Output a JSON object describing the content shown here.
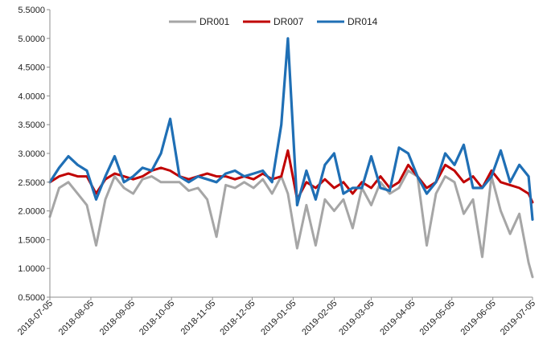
{
  "chart_data": {
    "type": "line",
    "title": "",
    "xlabel": "",
    "ylabel": "",
    "ylim": [
      0.5,
      5.5
    ],
    "yticks": [
      0.5,
      1.0,
      1.5,
      2.0,
      2.5,
      3.0,
      3.5,
      4.0,
      4.5,
      5.0,
      5.5
    ],
    "ytick_labels": [
      "0.5000",
      "1.0000",
      "1.5000",
      "2.0000",
      "2.5000",
      "3.0000",
      "3.5000",
      "4.0000",
      "4.5000",
      "5.0000",
      "5.5000"
    ],
    "x_ticks": [
      "2018-07-05",
      "2018-08-05",
      "2018-09-05",
      "2018-10-05",
      "2018-11-05",
      "2018-12-05",
      "2019-01-05",
      "2019-02-05",
      "2019-03-05",
      "2019-04-05",
      "2019-05-05",
      "2019-06-05",
      "2019-07-05"
    ],
    "grid": false,
    "legend_position": "top-center",
    "series": [
      {
        "name": "DR001",
        "color": "#a6a6a6",
        "x": [
          "2018-07-05",
          "2018-07-12",
          "2018-07-19",
          "2018-07-26",
          "2018-08-02",
          "2018-08-09",
          "2018-08-16",
          "2018-08-23",
          "2018-08-30",
          "2018-09-06",
          "2018-09-13",
          "2018-09-20",
          "2018-09-27",
          "2018-10-04",
          "2018-10-11",
          "2018-10-18",
          "2018-10-25",
          "2018-11-01",
          "2018-11-08",
          "2018-11-15",
          "2018-11-22",
          "2018-11-29",
          "2018-12-06",
          "2018-12-13",
          "2018-12-20",
          "2018-12-27",
          "2019-01-01",
          "2019-01-08",
          "2019-01-15",
          "2019-01-22",
          "2019-01-29",
          "2019-02-05",
          "2019-02-12",
          "2019-02-19",
          "2019-02-26",
          "2019-03-05",
          "2019-03-12",
          "2019-03-19",
          "2019-03-26",
          "2019-04-02",
          "2019-04-09",
          "2019-04-16",
          "2019-04-23",
          "2019-04-30",
          "2019-05-07",
          "2019-05-14",
          "2019-05-21",
          "2019-05-28",
          "2019-06-04",
          "2019-06-11",
          "2019-06-18",
          "2019-06-25",
          "2019-07-02",
          "2019-07-05"
        ],
        "values": [
          1.9,
          2.4,
          2.5,
          2.3,
          2.1,
          1.4,
          2.2,
          2.6,
          2.4,
          2.3,
          2.55,
          2.6,
          2.5,
          2.5,
          2.5,
          2.35,
          2.4,
          2.2,
          1.55,
          2.45,
          2.4,
          2.5,
          2.4,
          2.55,
          2.3,
          2.6,
          2.3,
          1.35,
          2.1,
          1.4,
          2.2,
          2.0,
          2.2,
          1.7,
          2.4,
          2.1,
          2.5,
          2.3,
          2.4,
          2.7,
          2.6,
          1.4,
          2.3,
          2.6,
          2.5,
          1.95,
          2.2,
          1.2,
          2.6,
          2.0,
          1.6,
          1.95,
          1.1,
          0.85
        ]
      },
      {
        "name": "DR007",
        "color": "#c00000",
        "x": [
          "2018-07-05",
          "2018-07-12",
          "2018-07-19",
          "2018-07-26",
          "2018-08-02",
          "2018-08-09",
          "2018-08-16",
          "2018-08-23",
          "2018-08-30",
          "2018-09-06",
          "2018-09-13",
          "2018-09-20",
          "2018-09-27",
          "2018-10-04",
          "2018-10-11",
          "2018-10-18",
          "2018-10-25",
          "2018-11-01",
          "2018-11-08",
          "2018-11-15",
          "2018-11-22",
          "2018-11-29",
          "2018-12-06",
          "2018-12-13",
          "2018-12-20",
          "2018-12-27",
          "2019-01-01",
          "2019-01-08",
          "2019-01-15",
          "2019-01-22",
          "2019-01-29",
          "2019-02-05",
          "2019-02-12",
          "2019-02-19",
          "2019-02-26",
          "2019-03-05",
          "2019-03-12",
          "2019-03-19",
          "2019-03-26",
          "2019-04-02",
          "2019-04-09",
          "2019-04-16",
          "2019-04-23",
          "2019-04-30",
          "2019-05-07",
          "2019-05-14",
          "2019-05-21",
          "2019-05-28",
          "2019-06-04",
          "2019-06-11",
          "2019-06-18",
          "2019-06-25",
          "2019-07-02",
          "2019-07-05"
        ],
        "values": [
          2.5,
          2.6,
          2.65,
          2.6,
          2.6,
          2.3,
          2.55,
          2.65,
          2.6,
          2.55,
          2.6,
          2.7,
          2.75,
          2.7,
          2.6,
          2.55,
          2.6,
          2.65,
          2.6,
          2.6,
          2.55,
          2.6,
          2.55,
          2.65,
          2.55,
          2.6,
          3.05,
          2.2,
          2.5,
          2.4,
          2.55,
          2.4,
          2.5,
          2.3,
          2.5,
          2.4,
          2.6,
          2.4,
          2.5,
          2.8,
          2.6,
          2.4,
          2.5,
          2.8,
          2.7,
          2.5,
          2.6,
          2.4,
          2.7,
          2.5,
          2.45,
          2.4,
          2.3,
          2.15
        ]
      },
      {
        "name": "DR014",
        "color": "#1f6fb5",
        "x": [
          "2018-07-05",
          "2018-07-12",
          "2018-07-19",
          "2018-07-26",
          "2018-08-02",
          "2018-08-09",
          "2018-08-16",
          "2018-08-23",
          "2018-08-30",
          "2018-09-06",
          "2018-09-13",
          "2018-09-20",
          "2018-09-27",
          "2018-10-04",
          "2018-10-11",
          "2018-10-18",
          "2018-10-25",
          "2018-11-01",
          "2018-11-08",
          "2018-11-15",
          "2018-11-22",
          "2018-11-29",
          "2018-12-06",
          "2018-12-13",
          "2018-12-20",
          "2018-12-27",
          "2019-01-01",
          "2019-01-08",
          "2019-01-15",
          "2019-01-22",
          "2019-01-29",
          "2019-02-05",
          "2019-02-12",
          "2019-02-19",
          "2019-02-26",
          "2019-03-05",
          "2019-03-12",
          "2019-03-19",
          "2019-03-26",
          "2019-04-02",
          "2019-04-09",
          "2019-04-16",
          "2019-04-23",
          "2019-04-30",
          "2019-05-07",
          "2019-05-14",
          "2019-05-21",
          "2019-05-28",
          "2019-06-04",
          "2019-06-11",
          "2019-06-18",
          "2019-06-25",
          "2019-07-02",
          "2019-07-05"
        ],
        "values": [
          2.5,
          2.75,
          2.95,
          2.8,
          2.7,
          2.2,
          2.6,
          2.95,
          2.5,
          2.6,
          2.75,
          2.7,
          3.0,
          3.6,
          2.6,
          2.5,
          2.6,
          2.55,
          2.5,
          2.65,
          2.7,
          2.6,
          2.65,
          2.7,
          2.5,
          3.5,
          5.0,
          2.1,
          2.7,
          2.2,
          2.8,
          3.0,
          2.3,
          2.4,
          2.4,
          2.95,
          2.4,
          2.35,
          3.1,
          3.0,
          2.6,
          2.3,
          2.5,
          3.0,
          2.8,
          3.15,
          2.4,
          2.4,
          2.6,
          3.05,
          2.5,
          2.8,
          2.6,
          1.85
        ]
      }
    ]
  }
}
